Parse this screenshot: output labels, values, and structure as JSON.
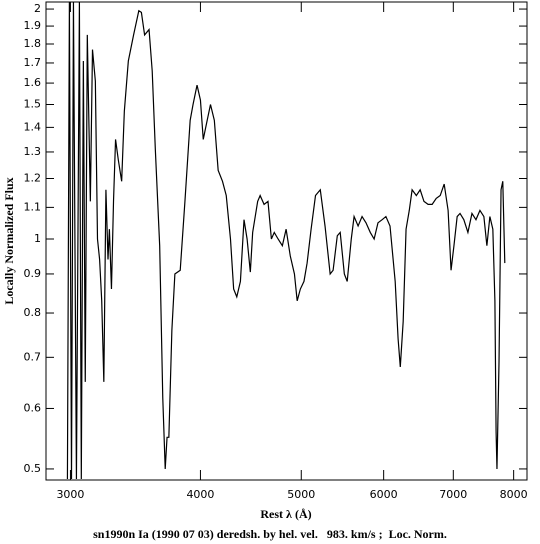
{
  "chart_data": {
    "type": "line",
    "xlabel": "Rest λ (Å)",
    "ylabel": "Locally Normalized Flux",
    "caption": "sn1990n Ia (1990 07 03) deredsh. by hel. vel.   983. km/s ;  Loc. Norm.",
    "xscale": "log",
    "yscale": "log",
    "color": "#000000",
    "xlim": [
      2842,
      8240
    ],
    "xticks": [
      3000,
      4000,
      5000,
      6000,
      7000,
      8000
    ],
    "ylim": [
      0.4836,
      2.043
    ],
    "yticks": [
      0.5,
      0.6,
      0.7,
      0.8,
      0.9,
      1,
      1.1,
      1.2,
      1.3,
      1.4,
      1.5,
      1.6,
      1.7,
      1.8,
      1.9,
      2
    ],
    "x": [
      2980,
      2993,
      3007,
      3020,
      3040,
      3060,
      3073,
      3087,
      3100,
      3114,
      3135,
      3150,
      3170,
      3185,
      3200,
      3215,
      3230,
      3245,
      3260,
      3270,
      3285,
      3300,
      3315,
      3335,
      3360,
      3380,
      3410,
      3450,
      3490,
      3510,
      3535,
      3570,
      3595,
      3620,
      3655,
      3680,
      3700,
      3715,
      3730,
      3755,
      3780,
      3825,
      3865,
      3910,
      3935,
      3970,
      4000,
      4025,
      4060,
      4090,
      4125,
      4160,
      4200,
      4235,
      4275,
      4305,
      4335,
      4370,
      4405,
      4435,
      4467,
      4490,
      4540,
      4565,
      4605,
      4645,
      4680,
      4710,
      4750,
      4795,
      4835,
      4880,
      4925,
      4955,
      4990,
      5030,
      5065,
      5110,
      5160,
      5215,
      5270,
      5330,
      5365,
      5415,
      5450,
      5500,
      5535,
      5585,
      5620,
      5670,
      5720,
      5770,
      5825,
      5875,
      5925,
      5980,
      6030,
      6085,
      6155,
      6195,
      6225,
      6265,
      6305,
      6350,
      6390,
      6450,
      6505,
      6560,
      6620,
      6680,
      6740,
      6800,
      6860,
      6920,
      6965,
      7010,
      7060,
      7105,
      7165,
      7230,
      7295,
      7360,
      7425,
      7490,
      7540,
      7590,
      7640,
      7675,
      7695,
      7710,
      7745,
      7780,
      7810,
      7845
    ],
    "values": [
      0.485,
      2.04,
      0.485,
      2.04,
      0.485,
      2.04,
      0.485,
      1.71,
      0.65,
      1.85,
      1.12,
      1.77,
      1.61,
      1.0,
      0.94,
      0.83,
      0.65,
      1.16,
      0.94,
      1.03,
      0.86,
      1.12,
      1.35,
      1.27,
      1.19,
      1.47,
      1.71,
      1.85,
      1.99,
      1.98,
      1.85,
      1.88,
      1.66,
      1.31,
      0.98,
      0.62,
      0.5,
      0.55,
      0.55,
      0.76,
      0.9,
      0.91,
      1.12,
      1.43,
      1.5,
      1.59,
      1.52,
      1.35,
      1.43,
      1.5,
      1.43,
      1.23,
      1.19,
      1.14,
      1.0,
      0.86,
      0.84,
      0.88,
      1.06,
      1.0,
      0.905,
      1.02,
      1.12,
      1.14,
      1.11,
      1.12,
      1.0,
      1.02,
      1.0,
      0.98,
      1.03,
      0.95,
      0.9,
      0.83,
      0.86,
      0.88,
      0.93,
      1.03,
      1.14,
      1.16,
      1.04,
      0.9,
      0.91,
      1.01,
      1.02,
      0.9,
      0.88,
      1.0,
      1.07,
      1.04,
      1.07,
      1.05,
      1.02,
      1.0,
      1.05,
      1.06,
      1.07,
      1.04,
      0.88,
      0.74,
      0.68,
      0.78,
      1.03,
      1.09,
      1.16,
      1.14,
      1.16,
      1.12,
      1.11,
      1.11,
      1.13,
      1.14,
      1.18,
      1.09,
      0.91,
      0.98,
      1.07,
      1.08,
      1.06,
      1.02,
      1.08,
      1.06,
      1.09,
      1.07,
      0.98,
      1.07,
      1.03,
      0.83,
      0.56,
      0.5,
      0.69,
      1.16,
      1.19,
      0.93
    ]
  }
}
